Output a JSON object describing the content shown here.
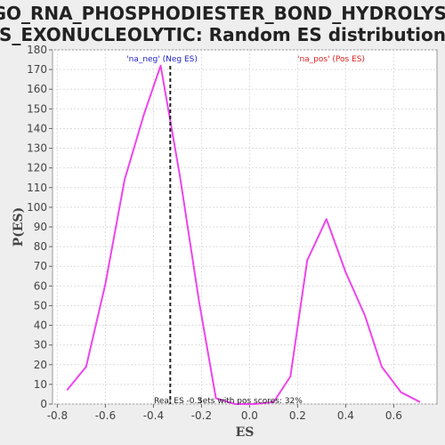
{
  "chart_data": {
    "type": "line",
    "title": "GO_RNA_PHOSPHODIESTER_BOND_HYDROLYSIS_EXONUCLEOLYTIC: Random ES distribution",
    "title_lines": [
      "GO_RNA_PHOSPHODIESTER_BOND_HYDROLYSI",
      "S_EXONUCLEOLYTIC: Random ES distribution"
    ],
    "xlabel": "ES",
    "ylabel": "P(ES)",
    "xlim": [
      -0.82,
      0.78
    ],
    "ylim": [
      0,
      180
    ],
    "x_ticks": [
      -0.8,
      -0.6,
      -0.4,
      -0.2,
      0.0,
      0.2,
      0.4,
      0.6
    ],
    "x_tick_labels": [
      "-0.8",
      "-0.6",
      "-0.4",
      "-0.2",
      "0.0",
      "0.2",
      "0.4",
      "0.6"
    ],
    "y_ticks": [
      0,
      10,
      20,
      30,
      40,
      50,
      60,
      70,
      80,
      90,
      100,
      110,
      120,
      130,
      140,
      150,
      160,
      170,
      180
    ],
    "y_tick_labels": [
      "0",
      "10",
      "20",
      "30",
      "40",
      "50",
      "60",
      "70",
      "80",
      "90",
      "100",
      "110",
      "120",
      "130",
      "140",
      "150",
      "160",
      "170",
      "180"
    ],
    "grid": true,
    "series": [
      {
        "color": "#ee44ee",
        "x": [
          -0.76,
          -0.68,
          -0.6,
          -0.52,
          -0.44,
          -0.37,
          -0.29,
          -0.21,
          -0.14,
          -0.06,
          0.02,
          0.1,
          0.17,
          0.24,
          0.32,
          0.4,
          0.48,
          0.55,
          0.63,
          0.71
        ],
        "y": [
          7,
          19,
          61,
          114,
          147,
          172,
          116,
          52,
          3,
          0,
          0,
          1,
          14,
          73,
          94,
          67,
          45,
          19,
          6,
          1
        ]
      }
    ],
    "real_es": -0.33,
    "annotations": {
      "neg_label": "'na_neg' (Neg ES)",
      "pos_label": "'na_pos' (Pos ES)",
      "real_es_label": "Real ES -0.3",
      "pos_scores_label": "Sets with pos scores: 32%"
    }
  }
}
